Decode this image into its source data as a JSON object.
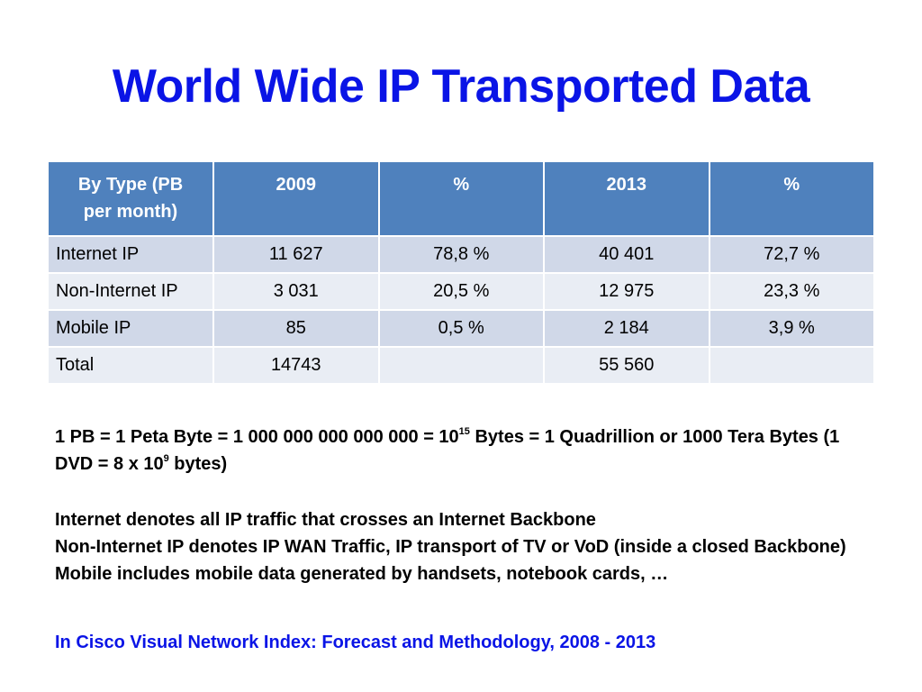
{
  "title": "World Wide IP Transported Data",
  "colors": {
    "title": "#0a14e6",
    "header_bg": "#4f81bd",
    "row_odd": "#d0d8e8",
    "row_even": "#e9edf4"
  },
  "table": {
    "header_line1": "By Type (PB",
    "header_line2": "per  month)",
    "columns": [
      "2009",
      "%",
      "2013",
      "%"
    ],
    "rows": [
      {
        "label": "Internet IP",
        "cells": [
          "11 627",
          "78,8 %",
          "40 401",
          "72,7 %"
        ]
      },
      {
        "label": "Non-Internet IP",
        "cells": [
          "3 031",
          "20,5 %",
          "12 975",
          "23,3 %"
        ]
      },
      {
        "label": "Mobile IP",
        "cells": [
          "85",
          "0,5 %",
          "2 184",
          "3,9 %"
        ]
      },
      {
        "label": "Total",
        "cells": [
          "14743",
          "",
          "55 560",
          ""
        ]
      }
    ]
  },
  "notes": {
    "pb_a": "1 PB = 1 Peta Byte = 1 000 000 000 000 000 = 10",
    "pb_exp": "15",
    "pb_b": " Bytes  = 1 Quadrillion or 1000 Tera Bytes (1 DVD = 8 x 10",
    "pb_exp2": "9",
    "pb_c": " bytes)",
    "internet": "Internet denotes all IP traffic that crosses an Internet Backbone",
    "non_internet": "Non-Internet IP denotes IP WAN Traffic, IP transport of TV or VoD (inside a closed Backbone)",
    "mobile": "Mobile includes mobile data generated by handsets, notebook cards, …"
  },
  "source": "In Cisco Visual Network Index:  Forecast and Methodology, 2008 - 2013"
}
